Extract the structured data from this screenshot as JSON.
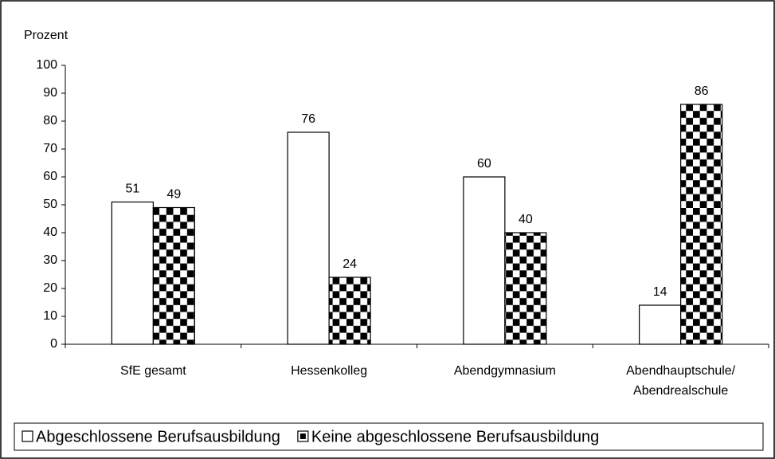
{
  "chart_data": {
    "type": "bar",
    "y_label": "Prozent",
    "categories": [
      "SfE gesamt",
      "Hessenkolleg",
      "Abendgymnasium",
      "Abendhauptschule/\nAbendrealschule"
    ],
    "series": [
      {
        "name": "Abgeschlossene Berufsausbildung",
        "color": "#ffffff",
        "values": [
          51,
          76,
          60,
          14
        ]
      },
      {
        "name": "Keine abgeschlossene Berufsausbildung",
        "color": "#000000",
        "pattern": "checkerboard",
        "values": [
          49,
          24,
          40,
          86
        ]
      }
    ],
    "ylim": [
      0,
      100
    ],
    "yticks": [
      0,
      10,
      20,
      30,
      40,
      50,
      60,
      70,
      80,
      90,
      100
    ],
    "grid": false,
    "legend": "bottom"
  }
}
